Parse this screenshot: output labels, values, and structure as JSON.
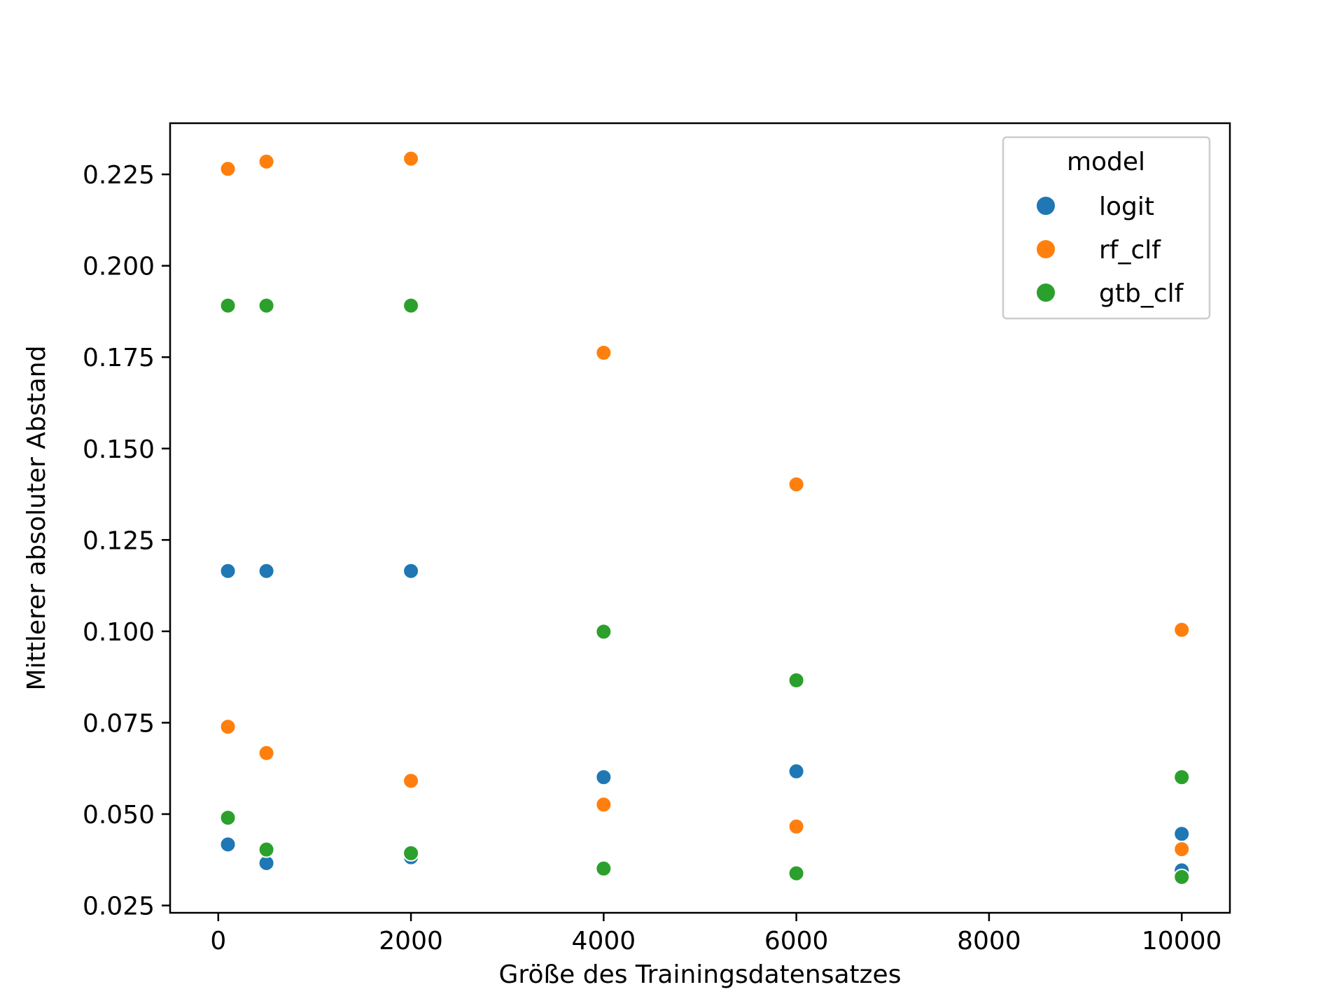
{
  "chart_data": {
    "type": "scatter",
    "xlabel": "Größe des Trainingsdatensatzes",
    "ylabel": "Mittlerer absoluter Abstand",
    "xlim": [
      -500,
      10500
    ],
    "ylim": [
      0.023,
      0.239
    ],
    "xticks": [
      0,
      2000,
      4000,
      6000,
      8000,
      10000
    ],
    "xtick_labels": [
      "0",
      "2000",
      "4000",
      "6000",
      "8000",
      "10000"
    ],
    "yticks": [
      0.025,
      0.05,
      0.075,
      0.1,
      0.125,
      0.15,
      0.175,
      0.2,
      0.225
    ],
    "ytick_labels": [
      "0.025",
      "0.050",
      "0.075",
      "0.100",
      "0.125",
      "0.150",
      "0.175",
      "0.200",
      "0.225"
    ],
    "grid": false,
    "legend": {
      "title": "model",
      "placement": "upper-right"
    },
    "series": [
      {
        "name": "logit",
        "color": "#1f77b4",
        "points": [
          [
            100,
            0.1165
          ],
          [
            100,
            0.0417
          ],
          [
            500,
            0.1165
          ],
          [
            500,
            0.0366
          ],
          [
            2000,
            0.1165
          ],
          [
            2000,
            0.0382
          ],
          [
            4000,
            0.0601
          ],
          [
            6000,
            0.0617
          ],
          [
            10000,
            0.0446
          ],
          [
            10000,
            0.0346
          ]
        ]
      },
      {
        "name": "rf_clf",
        "color": "#ff7f0e",
        "points": [
          [
            100,
            0.2265
          ],
          [
            100,
            0.0739
          ],
          [
            500,
            0.2285
          ],
          [
            500,
            0.0667
          ],
          [
            2000,
            0.2293
          ],
          [
            2000,
            0.0591
          ],
          [
            4000,
            0.1762
          ],
          [
            4000,
            0.0526
          ],
          [
            6000,
            0.1402
          ],
          [
            6000,
            0.0466
          ],
          [
            10000,
            0.1004
          ],
          [
            10000,
            0.0404
          ]
        ]
      },
      {
        "name": "gtb_clf",
        "color": "#2ca02c",
        "points": [
          [
            100,
            0.1891
          ],
          [
            100,
            0.049
          ],
          [
            500,
            0.1891
          ],
          [
            500,
            0.0403
          ],
          [
            2000,
            0.1891
          ],
          [
            2000,
            0.0393
          ],
          [
            4000,
            0.0999
          ],
          [
            4000,
            0.0351
          ],
          [
            6000,
            0.0866
          ],
          [
            6000,
            0.0338
          ],
          [
            10000,
            0.0601
          ],
          [
            10000,
            0.0328
          ]
        ]
      }
    ]
  }
}
